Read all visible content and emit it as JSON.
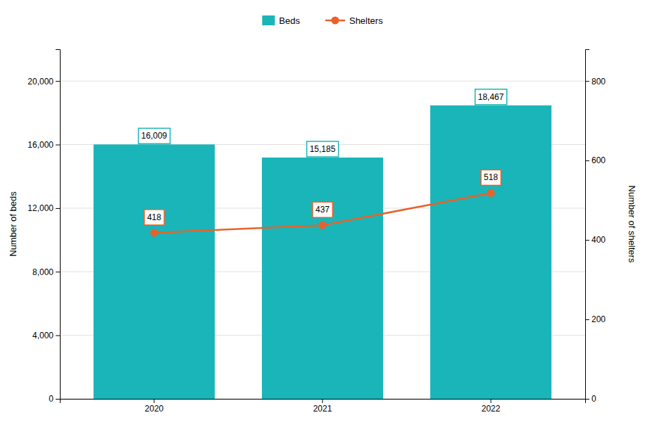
{
  "chart_data": {
    "type": "bar",
    "categories": [
      "2020",
      "2021",
      "2022"
    ],
    "series": [
      {
        "name": "Beds",
        "type": "bar",
        "color": "#1ab5b8",
        "values": [
          16009,
          15185,
          18467
        ],
        "value_labels": [
          "16,009",
          "15,185",
          "18,467"
        ]
      },
      {
        "name": "Shelters",
        "type": "line",
        "axis": "y2",
        "color": "#e8622a",
        "marker": "circle",
        "values": [
          418,
          437,
          518
        ]
      }
    ],
    "ylabel": "Number of beds",
    "y2label": "Number of shelters",
    "ylim": [
      0,
      22000
    ],
    "yticks": [
      0,
      {
        "value": 4000,
        "label": "4,000"
      },
      {
        "value": 8000,
        "label": "8,000"
      },
      {
        "value": 12000,
        "label": "12,000"
      },
      {
        "value": 16000,
        "label": "16,000"
      },
      {
        "value": 20000,
        "label": "20,000"
      }
    ],
    "y2lim": [
      0,
      880
    ],
    "y2ticks": [
      0,
      200,
      400,
      600,
      800
    ],
    "grid": true,
    "legend": "top",
    "data_labels": true
  }
}
